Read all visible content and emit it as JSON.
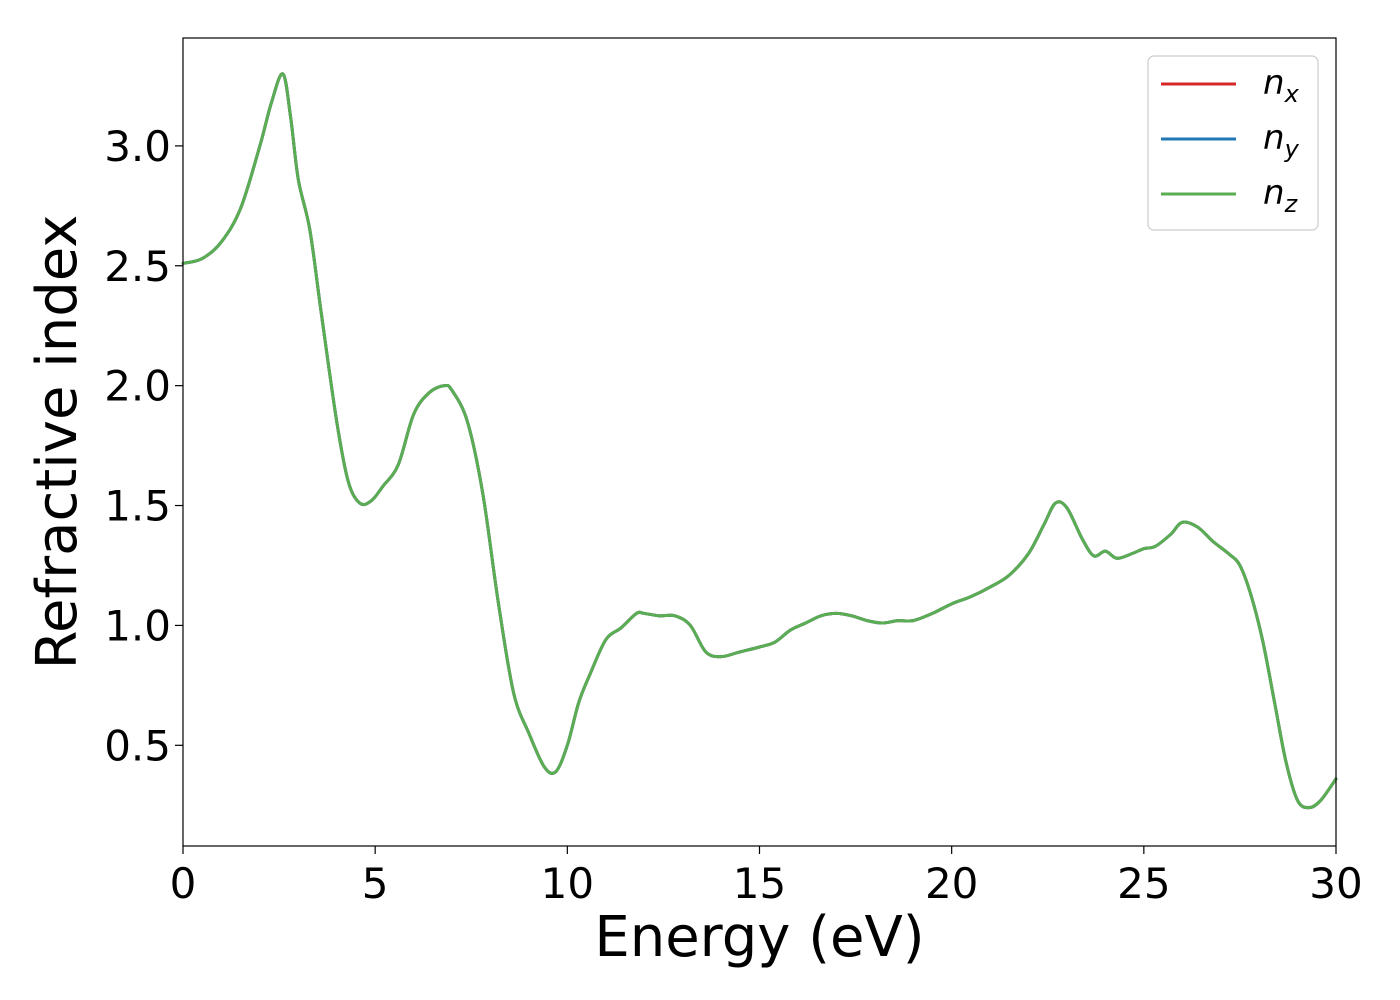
{
  "chart_data": {
    "type": "line",
    "xlabel": "Energy (eV)",
    "ylabel": "Refractive index",
    "xlim": [
      0,
      30
    ],
    "ylim": [
      0.08,
      3.45
    ],
    "x_ticks": [
      0,
      5,
      10,
      15,
      20,
      25,
      30
    ],
    "x_tick_labels": [
      "0",
      "5",
      "10",
      "15",
      "20",
      "25",
      "30"
    ],
    "y_ticks": [
      0.5,
      1.0,
      1.5,
      2.0,
      2.5,
      3.0
    ],
    "y_tick_labels": [
      "0.5",
      "1.0",
      "1.5",
      "2.0",
      "2.5",
      "3.0"
    ],
    "grid": false,
    "legend_position": "top-right",
    "x": [
      0,
      0.5,
      1.0,
      1.5,
      2.0,
      2.3,
      2.6,
      2.8,
      3.0,
      3.3,
      3.6,
      4.0,
      4.3,
      4.6,
      4.9,
      5.2,
      5.6,
      6.0,
      6.4,
      6.8,
      7.0,
      7.4,
      7.8,
      8.2,
      8.6,
      9.0,
      9.4,
      9.7,
      10.0,
      10.3,
      10.6,
      11.0,
      11.4,
      11.8,
      12.0,
      12.4,
      12.8,
      13.2,
      13.6,
      14.0,
      14.5,
      15.0,
      15.4,
      15.8,
      16.2,
      16.6,
      17.0,
      17.4,
      17.8,
      18.2,
      18.6,
      19.0,
      19.5,
      20.0,
      20.5,
      21.0,
      21.5,
      22.0,
      22.4,
      22.7,
      23.0,
      23.4,
      23.7,
      24.0,
      24.3,
      24.7,
      25.0,
      25.3,
      25.7,
      26.0,
      26.4,
      26.8,
      27.2,
      27.5,
      27.8,
      28.1,
      28.4,
      28.7,
      29.0,
      29.3,
      29.6,
      30.0
    ],
    "series": [
      {
        "name": "n",
        "sub": "x",
        "color": "#d62728",
        "values": [
          2.51,
          2.53,
          2.6,
          2.74,
          3.0,
          3.18,
          3.3,
          3.12,
          2.86,
          2.65,
          2.3,
          1.85,
          1.6,
          1.51,
          1.52,
          1.58,
          1.67,
          1.88,
          1.97,
          2.0,
          1.98,
          1.85,
          1.55,
          1.1,
          0.72,
          0.55,
          0.41,
          0.39,
          0.5,
          0.68,
          0.8,
          0.94,
          0.99,
          1.05,
          1.05,
          1.04,
          1.04,
          1.0,
          0.89,
          0.87,
          0.89,
          0.91,
          0.93,
          0.98,
          1.01,
          1.04,
          1.05,
          1.04,
          1.02,
          1.01,
          1.02,
          1.02,
          1.05,
          1.09,
          1.12,
          1.16,
          1.21,
          1.3,
          1.42,
          1.51,
          1.49,
          1.36,
          1.29,
          1.31,
          1.28,
          1.3,
          1.32,
          1.33,
          1.38,
          1.43,
          1.41,
          1.35,
          1.3,
          1.25,
          1.12,
          0.93,
          0.68,
          0.43,
          0.27,
          0.24,
          0.27,
          0.36
        ]
      },
      {
        "name": "n",
        "sub": "y",
        "color": "#1f77b4",
        "values": [
          2.51,
          2.53,
          2.6,
          2.74,
          3.0,
          3.18,
          3.3,
          3.12,
          2.86,
          2.65,
          2.3,
          1.85,
          1.6,
          1.51,
          1.52,
          1.58,
          1.67,
          1.88,
          1.97,
          2.0,
          1.98,
          1.85,
          1.55,
          1.1,
          0.72,
          0.55,
          0.41,
          0.39,
          0.5,
          0.68,
          0.8,
          0.94,
          0.99,
          1.05,
          1.05,
          1.04,
          1.04,
          1.0,
          0.89,
          0.87,
          0.89,
          0.91,
          0.93,
          0.98,
          1.01,
          1.04,
          1.05,
          1.04,
          1.02,
          1.01,
          1.02,
          1.02,
          1.05,
          1.09,
          1.12,
          1.16,
          1.21,
          1.3,
          1.42,
          1.51,
          1.49,
          1.36,
          1.29,
          1.31,
          1.28,
          1.3,
          1.32,
          1.33,
          1.38,
          1.43,
          1.41,
          1.35,
          1.3,
          1.25,
          1.12,
          0.93,
          0.68,
          0.43,
          0.27,
          0.24,
          0.27,
          0.36
        ]
      },
      {
        "name": "n",
        "sub": "z",
        "color": "#5aad52",
        "values": [
          2.51,
          2.53,
          2.6,
          2.74,
          3.0,
          3.18,
          3.3,
          3.12,
          2.86,
          2.65,
          2.3,
          1.85,
          1.6,
          1.51,
          1.52,
          1.58,
          1.67,
          1.88,
          1.97,
          2.0,
          1.98,
          1.85,
          1.55,
          1.1,
          0.72,
          0.55,
          0.41,
          0.39,
          0.5,
          0.68,
          0.8,
          0.94,
          0.99,
          1.05,
          1.05,
          1.04,
          1.04,
          1.0,
          0.89,
          0.87,
          0.89,
          0.91,
          0.93,
          0.98,
          1.01,
          1.04,
          1.05,
          1.04,
          1.02,
          1.01,
          1.02,
          1.02,
          1.05,
          1.09,
          1.12,
          1.16,
          1.21,
          1.3,
          1.42,
          1.51,
          1.49,
          1.36,
          1.29,
          1.31,
          1.28,
          1.3,
          1.32,
          1.33,
          1.38,
          1.43,
          1.41,
          1.35,
          1.3,
          1.25,
          1.12,
          0.93,
          0.68,
          0.43,
          0.27,
          0.24,
          0.27,
          0.36
        ]
      }
    ]
  }
}
